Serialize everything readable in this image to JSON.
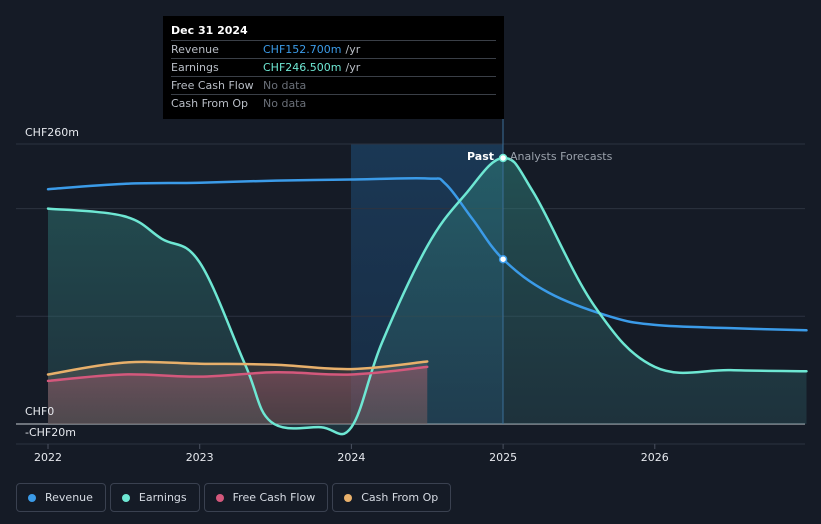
{
  "tooltip": {
    "date": "Dec 31 2024",
    "rows": [
      {
        "label": "Revenue",
        "value": "CHF152.700m",
        "unit": "/yr",
        "color": "#3b9be8"
      },
      {
        "label": "Earnings",
        "value": "CHF246.500m",
        "unit": "/yr",
        "color": "#6ee7d3"
      },
      {
        "label": "Free Cash Flow",
        "value": "No data",
        "unit": "",
        "color": "#6a6f78"
      },
      {
        "label": "Cash From Op",
        "value": "No data",
        "unit": "",
        "color": "#6a6f78"
      }
    ]
  },
  "labels": {
    "past": "Past",
    "forecast": "Analysts Forecasts"
  },
  "legend": [
    {
      "label": "Revenue",
      "color": "#3b9be8"
    },
    {
      "label": "Earnings",
      "color": "#6ee7d3"
    },
    {
      "label": "Free Cash Flow",
      "color": "#d4587c"
    },
    {
      "label": "Cash From Op",
      "color": "#e8b06b"
    }
  ],
  "chart_data": {
    "type": "line",
    "y_tick_labels": [
      "CHF260m",
      "CHF0",
      "-CHF20m"
    ],
    "x_tick_labels": [
      "2022",
      "2023",
      "2024",
      "2025",
      "2026"
    ],
    "ylim": [
      -20,
      260
    ],
    "grid": true,
    "divider_x": 2025.0,
    "series": [
      {
        "name": "Revenue",
        "color": "#3b9be8",
        "points": [
          [
            2022.0,
            218
          ],
          [
            2022.5,
            223
          ],
          [
            2023.0,
            224
          ],
          [
            2023.5,
            226
          ],
          [
            2024.0,
            227
          ],
          [
            2024.5,
            228
          ],
          [
            2024.62,
            223
          ],
          [
            2024.8,
            190
          ],
          [
            2025.0,
            153
          ],
          [
            2025.3,
            122
          ],
          [
            2025.7,
            100
          ],
          [
            2026.0,
            92
          ],
          [
            2026.5,
            89
          ],
          [
            2027.0,
            87
          ]
        ]
      },
      {
        "name": "Earnings",
        "color": "#6ee7d3",
        "points": [
          [
            2022.0,
            200
          ],
          [
            2022.5,
            193
          ],
          [
            2022.75,
            172
          ],
          [
            2023.0,
            150
          ],
          [
            2023.3,
            55
          ],
          [
            2023.47,
            2
          ],
          [
            2023.8,
            -3
          ],
          [
            2024.0,
            -3
          ],
          [
            2024.2,
            75
          ],
          [
            2024.5,
            165
          ],
          [
            2024.75,
            213
          ],
          [
            2025.0,
            247
          ],
          [
            2025.2,
            215
          ],
          [
            2025.6,
            110
          ],
          [
            2026.0,
            53
          ],
          [
            2026.5,
            50
          ],
          [
            2027.0,
            49
          ]
        ]
      },
      {
        "name": "Free Cash Flow",
        "color": "#d4587c",
        "points": [
          [
            2022.0,
            40
          ],
          [
            2022.5,
            46
          ],
          [
            2023.0,
            44
          ],
          [
            2023.5,
            48
          ],
          [
            2024.0,
            46
          ],
          [
            2024.5,
            53
          ]
        ]
      },
      {
        "name": "Cash From Op",
        "color": "#e8b06b",
        "points": [
          [
            2022.0,
            46
          ],
          [
            2022.5,
            57
          ],
          [
            2023.0,
            56
          ],
          [
            2023.5,
            55
          ],
          [
            2024.0,
            51
          ],
          [
            2024.5,
            58
          ]
        ]
      }
    ],
    "highlight_points": [
      {
        "series": "Revenue",
        "x": 2025.0,
        "y": 153
      },
      {
        "series": "Earnings",
        "x": 2025.0,
        "y": 247
      }
    ]
  }
}
